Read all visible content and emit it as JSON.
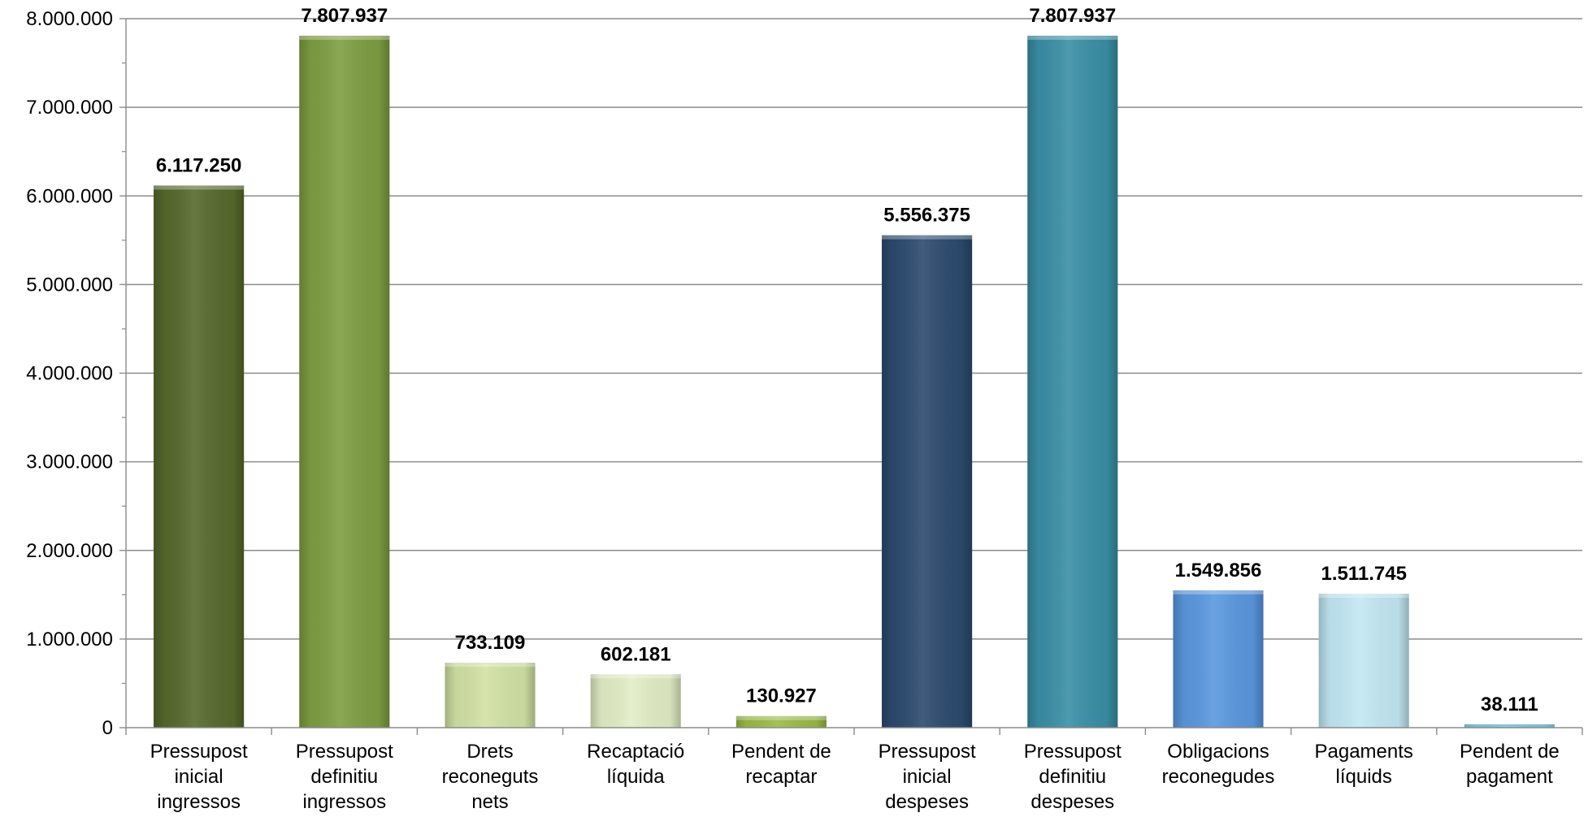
{
  "chart_data": {
    "type": "bar",
    "categories": [
      [
        "Pressupost",
        "inicial",
        "ingressos"
      ],
      [
        "Pressupost",
        "definitiu",
        "ingressos"
      ],
      [
        "Drets",
        "reconeguts",
        "nets"
      ],
      [
        "Recaptació",
        "líquida"
      ],
      [
        "Pendent de",
        "recaptar"
      ],
      [
        "Pressupost",
        "inicial",
        "despeses"
      ],
      [
        "Pressupost",
        "definitiu",
        "despeses"
      ],
      [
        "Obligacions",
        "reconegudes"
      ],
      [
        "Pagaments",
        "líquids"
      ],
      [
        "Pendent de",
        "pagament"
      ]
    ],
    "values": [
      6117250,
      7807937,
      733109,
      602181,
      130927,
      5556375,
      7807937,
      1549856,
      1511745,
      38111
    ],
    "value_labels": [
      "6.117.250",
      "7.807.937",
      "733.109",
      "602.181",
      "130.927",
      "5.556.375",
      "7.807.937",
      "1.549.856",
      "1.511.745",
      "38.111"
    ],
    "bar_colors": [
      "#56692c",
      "#7e9e42",
      "#d2e2a4",
      "#e2eec6",
      "#9bbb47",
      "#2c4a6e",
      "#3a8fa6",
      "#5a98df",
      "#c2e8f4",
      "#4aa8c8"
    ],
    "ylim": [
      0,
      8000000
    ],
    "yticks": [
      0,
      1000000,
      2000000,
      3000000,
      4000000,
      5000000,
      6000000,
      7000000,
      8000000
    ],
    "ytick_labels": [
      "0",
      "1.000.000",
      "2.000.000",
      "3.000.000",
      "4.000.000",
      "5.000.000",
      "6.000.000",
      "7.000.000",
      "8.000.000"
    ],
    "grid": true,
    "title": "",
    "xlabel": "",
    "ylabel": ""
  }
}
